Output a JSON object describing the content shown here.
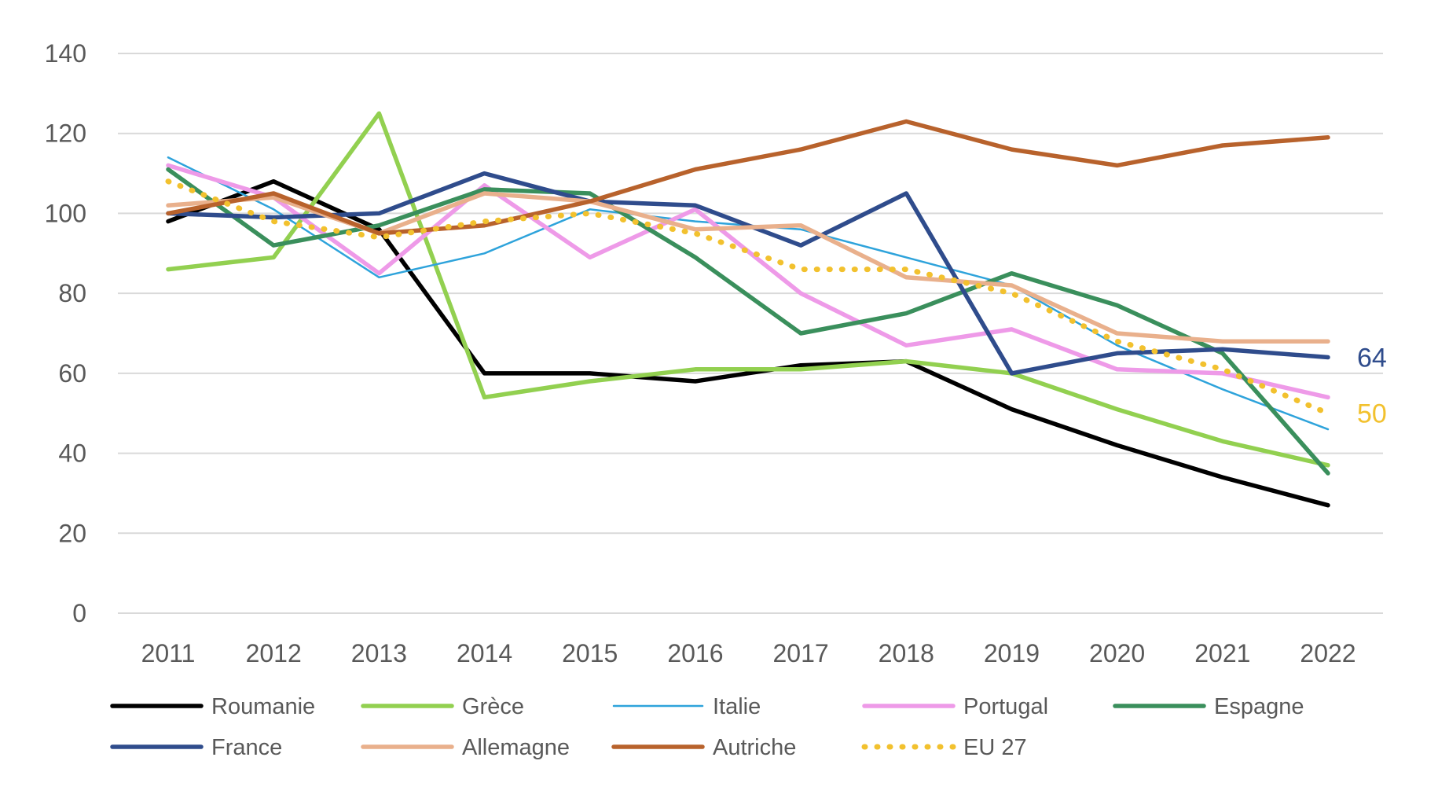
{
  "chart_data": {
    "type": "line",
    "title": "",
    "xlabel": "",
    "ylabel": "",
    "ylim": [
      0,
      140
    ],
    "yticks": [
      0,
      20,
      40,
      60,
      80,
      100,
      120,
      140
    ],
    "grid": true,
    "legend_position": "bottom",
    "categories": [
      "2011",
      "2012",
      "2013",
      "2014",
      "2015",
      "2016",
      "2017",
      "2018",
      "2019",
      "2020",
      "2021",
      "2022"
    ],
    "series": [
      {
        "name": "Roumanie",
        "color": "#000000",
        "style": "solid",
        "values": [
          98,
          108,
          96,
          60,
          60,
          58,
          62,
          63,
          51,
          42,
          34,
          27
        ]
      },
      {
        "name": "Grèce",
        "color": "#92D050",
        "style": "solid",
        "values": [
          86,
          89,
          125,
          54,
          58,
          61,
          61,
          63,
          60,
          51,
          43,
          37
        ]
      },
      {
        "name": "Italie",
        "color": "#2EA3DB",
        "style": "thin",
        "values": [
          114,
          101,
          84,
          90,
          101,
          98,
          96,
          89,
          82,
          67,
          56,
          46
        ]
      },
      {
        "name": "Portugal",
        "color": "#EE9AE8",
        "style": "solid",
        "values": [
          112,
          104,
          85,
          107,
          89,
          101,
          80,
          67,
          71,
          61,
          60,
          54
        ]
      },
      {
        "name": "Espagne",
        "color": "#3A8F5C",
        "style": "solid",
        "values": [
          111,
          92,
          97,
          106,
          105,
          89,
          70,
          75,
          85,
          77,
          65,
          35
        ]
      },
      {
        "name": "France",
        "color": "#2F4C8C",
        "style": "solid",
        "values": [
          100,
          99,
          100,
          110,
          103,
          102,
          92,
          105,
          60,
          65,
          66,
          64
        ]
      },
      {
        "name": "Allemagne",
        "color": "#E9B08C",
        "style": "solid",
        "values": [
          102,
          104,
          95,
          105,
          103,
          96,
          97,
          84,
          82,
          70,
          68,
          68
        ]
      },
      {
        "name": "Autriche",
        "color": "#B8622C",
        "style": "solid",
        "values": [
          100,
          105,
          95,
          97,
          103,
          111,
          116,
          123,
          116,
          112,
          117,
          119
        ]
      },
      {
        "name": "EU 27",
        "color": "#F2C12E",
        "style": "dotted",
        "values": [
          108,
          98,
          94,
          98,
          100,
          95,
          86,
          86,
          80,
          68,
          61,
          50
        ]
      }
    ],
    "end_labels": [
      {
        "series": "France",
        "text": "64",
        "color": "#2F4C8C"
      },
      {
        "series": "EU 27",
        "text": "50",
        "color": "#F2C12E"
      }
    ]
  }
}
